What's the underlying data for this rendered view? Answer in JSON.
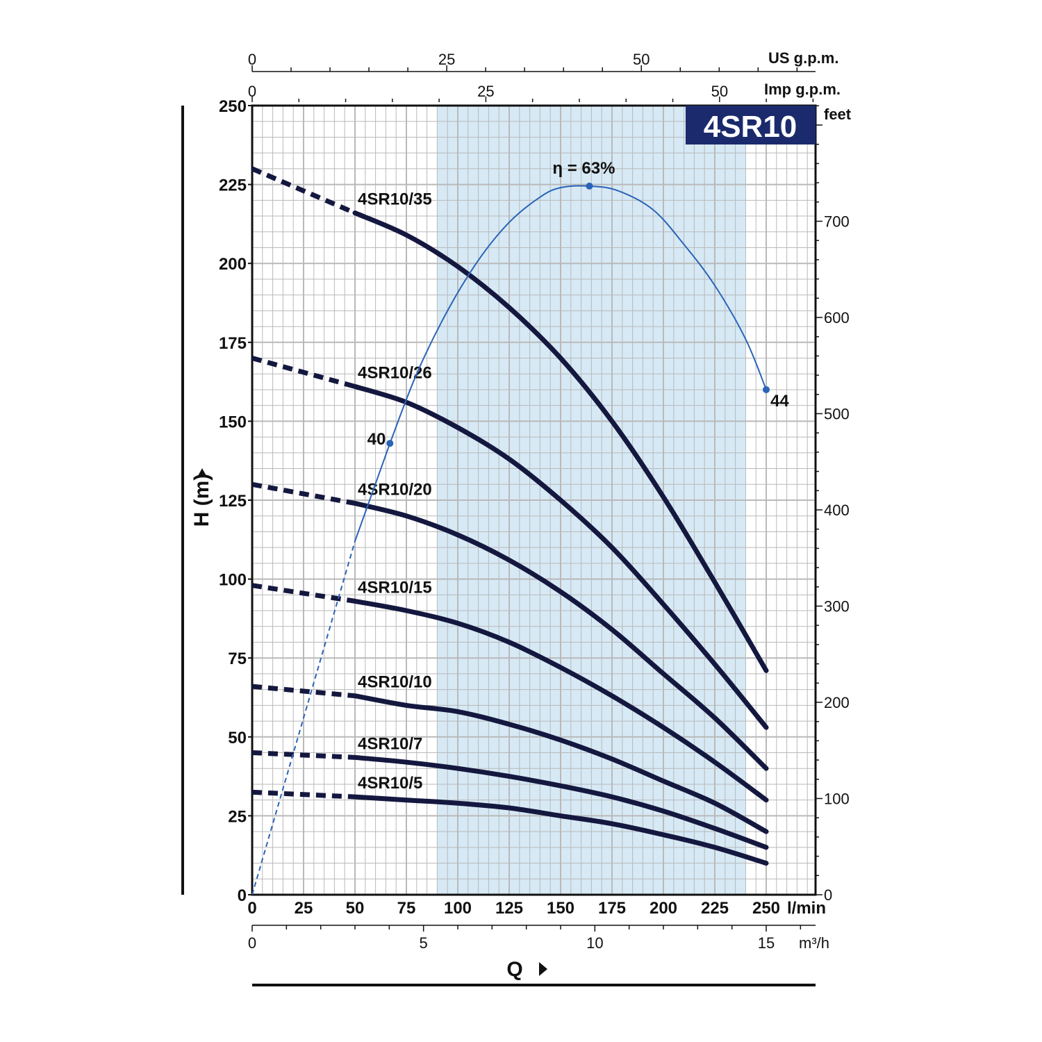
{
  "chart_data": {
    "type": "line",
    "title": "4SR10",
    "xlabel": "Q",
    "ylabel": "H (m)",
    "x_unit": "l/min",
    "y_unit_right": "feet",
    "xlim": [
      0,
      275
    ],
    "ylim": [
      0,
      250
    ],
    "grid": true,
    "x_ticks": [
      0,
      25,
      50,
      75,
      100,
      125,
      150,
      175,
      200,
      225,
      250
    ],
    "y_ticks": [
      0,
      25,
      50,
      75,
      100,
      125,
      150,
      175,
      200,
      225,
      250
    ],
    "feet_ticks": [
      0,
      100,
      200,
      300,
      400,
      500,
      600,
      700
    ],
    "m3h_axis": {
      "unit": "m³/h",
      "ticks": [
        0,
        5,
        10,
        15
      ]
    },
    "us_gpm_axis": {
      "unit": "US g.p.m.",
      "ticks": [
        0,
        25,
        50
      ]
    },
    "imp_gpm_axis": {
      "unit": "Imp g.p.m.",
      "ticks": [
        0,
        25,
        50
      ]
    },
    "recommended_range": [
      90,
      240
    ],
    "series": [
      {
        "name": "4SR10/35",
        "x": [
          0,
          50,
          75,
          100,
          125,
          150,
          175,
          200,
          225,
          250
        ],
        "y": [
          230,
          216,
          209,
          199,
          186,
          170,
          150,
          126,
          99,
          71
        ],
        "dashed_to": 50
      },
      {
        "name": "4SR10/26",
        "x": [
          0,
          50,
          75,
          100,
          125,
          150,
          175,
          200,
          225,
          250
        ],
        "y": [
          170,
          161,
          156,
          148,
          138,
          125,
          110,
          92,
          73,
          53
        ],
        "dashed_to": 50
      },
      {
        "name": "4SR10/20",
        "x": [
          0,
          50,
          75,
          100,
          125,
          150,
          175,
          200,
          225,
          250
        ],
        "y": [
          130,
          124,
          120,
          114,
          106,
          96,
          84,
          70,
          56,
          40
        ],
        "dashed_to": 50
      },
      {
        "name": "4SR10/15",
        "x": [
          0,
          50,
          75,
          100,
          125,
          150,
          175,
          200,
          225,
          250
        ],
        "y": [
          98,
          93,
          90,
          86,
          80,
          72,
          63,
          53,
          42,
          30
        ],
        "dashed_to": 50
      },
      {
        "name": "4SR10/10",
        "x": [
          0,
          50,
          75,
          100,
          125,
          150,
          175,
          200,
          225,
          250
        ],
        "y": [
          66,
          63,
          60,
          58,
          54,
          49,
          43,
          36,
          29,
          20
        ],
        "dashed_to": 50
      },
      {
        "name": "4SR10/7",
        "x": [
          0,
          50,
          75,
          100,
          125,
          150,
          175,
          200,
          225,
          250
        ],
        "y": [
          45,
          43.5,
          42,
          40,
          37.5,
          34.5,
          31,
          26.5,
          21,
          15
        ],
        "dashed_to": 50
      },
      {
        "name": "4SR10/5",
        "x": [
          0,
          50,
          75,
          100,
          125,
          150,
          175,
          200,
          225,
          250
        ],
        "y": [
          32.5,
          31,
          30,
          29,
          27.5,
          25,
          22.5,
          19,
          15,
          10
        ],
        "dashed_to": 50
      }
    ],
    "efficiency_curve": {
      "x": [
        67,
        80,
        95,
        110,
        125,
        140,
        150,
        164,
        178,
        195,
        210,
        225,
        240,
        250
      ],
      "y": [
        143,
        165,
        185,
        201,
        213,
        221,
        224,
        224.5,
        223,
        217,
        206,
        193,
        176,
        160
      ],
      "dashed_from_origin_to": [
        50,
        112
      ],
      "points": [
        {
          "x": 67,
          "y": 143,
          "label": "40"
        },
        {
          "x": 164,
          "y": 224.5,
          "label": "η = 63%"
        },
        {
          "x": 250,
          "y": 160,
          "label": "44"
        }
      ]
    },
    "colors": {
      "curves": "#14183f",
      "efficiency": "#2a63b8",
      "range_fill": "#d6e9f5",
      "badge": "#1a2a6c",
      "grid": "#b9b9b9"
    }
  }
}
